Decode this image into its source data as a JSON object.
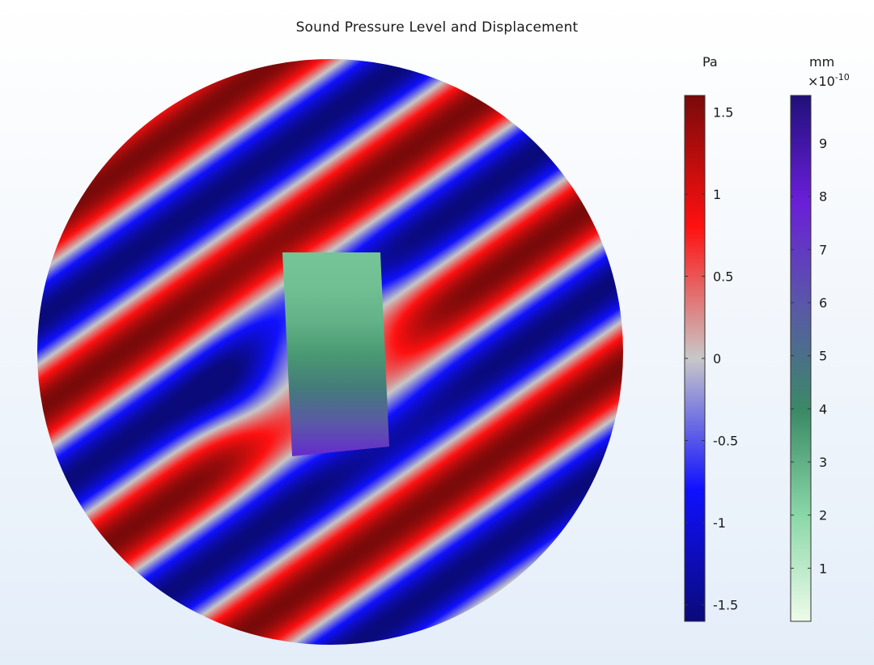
{
  "chart_data": {
    "type": "heatmap",
    "title": "Sound Pressure Level and Displacement",
    "colorbars": [
      {
        "name": "Sound Pressure Level",
        "unit": "Pa",
        "multiplier": "",
        "range": [
          -1.6,
          1.6
        ],
        "ticks": [
          1.5,
          1,
          0.5,
          0,
          -0.5,
          -1,
          -1.5
        ],
        "tick_labels": [
          "1.5",
          "1",
          "0.5",
          "0",
          "-0.5",
          "-1",
          "-1.5"
        ],
        "colors": [
          "#0a0a7a",
          "#1010ff",
          "#c8c8c8",
          "#ff1010",
          "#7a0a0a"
        ]
      },
      {
        "name": "Displacement",
        "unit": "mm",
        "multiplier_base": "×10",
        "multiplier_exp": "-10",
        "range": [
          0,
          9.9
        ],
        "ticks": [
          9,
          8,
          7,
          6,
          5,
          4,
          3,
          2,
          1
        ],
        "tick_labels": [
          "9",
          "8",
          "7",
          "6",
          "5",
          "4",
          "3",
          "2",
          "1"
        ],
        "colors": [
          "#eefbea",
          "#8ad8a8",
          "#3a8a66",
          "#5a58a8",
          "#6a1ed8",
          "#20107a"
        ]
      }
    ],
    "field": {
      "domain": "circular",
      "wave_direction_deg": 55,
      "wavelength_px": 185,
      "amplitude_pa": 1.6
    },
    "structure": {
      "shape": "rectangle",
      "displacement_range_mm_e10": [
        2.5,
        7.5
      ]
    }
  }
}
